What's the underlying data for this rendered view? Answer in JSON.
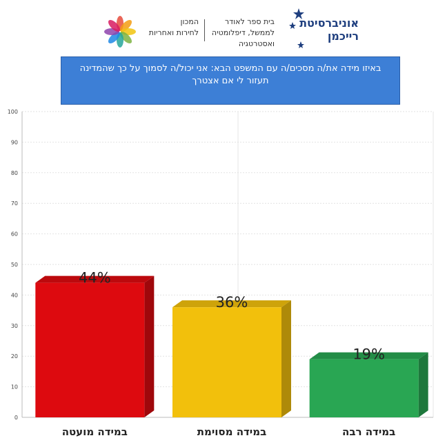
{
  "header": {
    "university_name": "אוניברסיטת רייכמן",
    "school_lines": [
      "בית ספר לאודר",
      "לממשל, דיפלומטיה",
      "ואסטרטגיה"
    ],
    "institute_lines": [
      "המכון",
      "לחירות ואחריות"
    ]
  },
  "question": "באיזו מידה את/ה מסכים/ה עם המשפט הבא: אני יכול/ה לסמוך על כך שהמדינה תעזור לי אם אצטרך",
  "colors": {
    "accent_blue": "#3d7fd6",
    "bar_red": "#dd0a0f",
    "bar_yellow": "#f2c00c",
    "bar_green": "#29a653"
  },
  "chart_data": {
    "type": "bar",
    "categories": [
      "במידה מועטה",
      "במידה מסוימת",
      "במידה רבה"
    ],
    "values": [
      44,
      36,
      19
    ],
    "data_labels": [
      "44%",
      "36%",
      "19%"
    ],
    "colors": [
      "#dd0a0f",
      "#f2c00c",
      "#29a653"
    ],
    "yticks": [
      "0",
      "10",
      "20",
      "30",
      "40",
      "50",
      "60",
      "70",
      "80",
      "90",
      "100"
    ],
    "ylim": [
      0,
      100
    ],
    "grid": true,
    "three_d": true
  }
}
